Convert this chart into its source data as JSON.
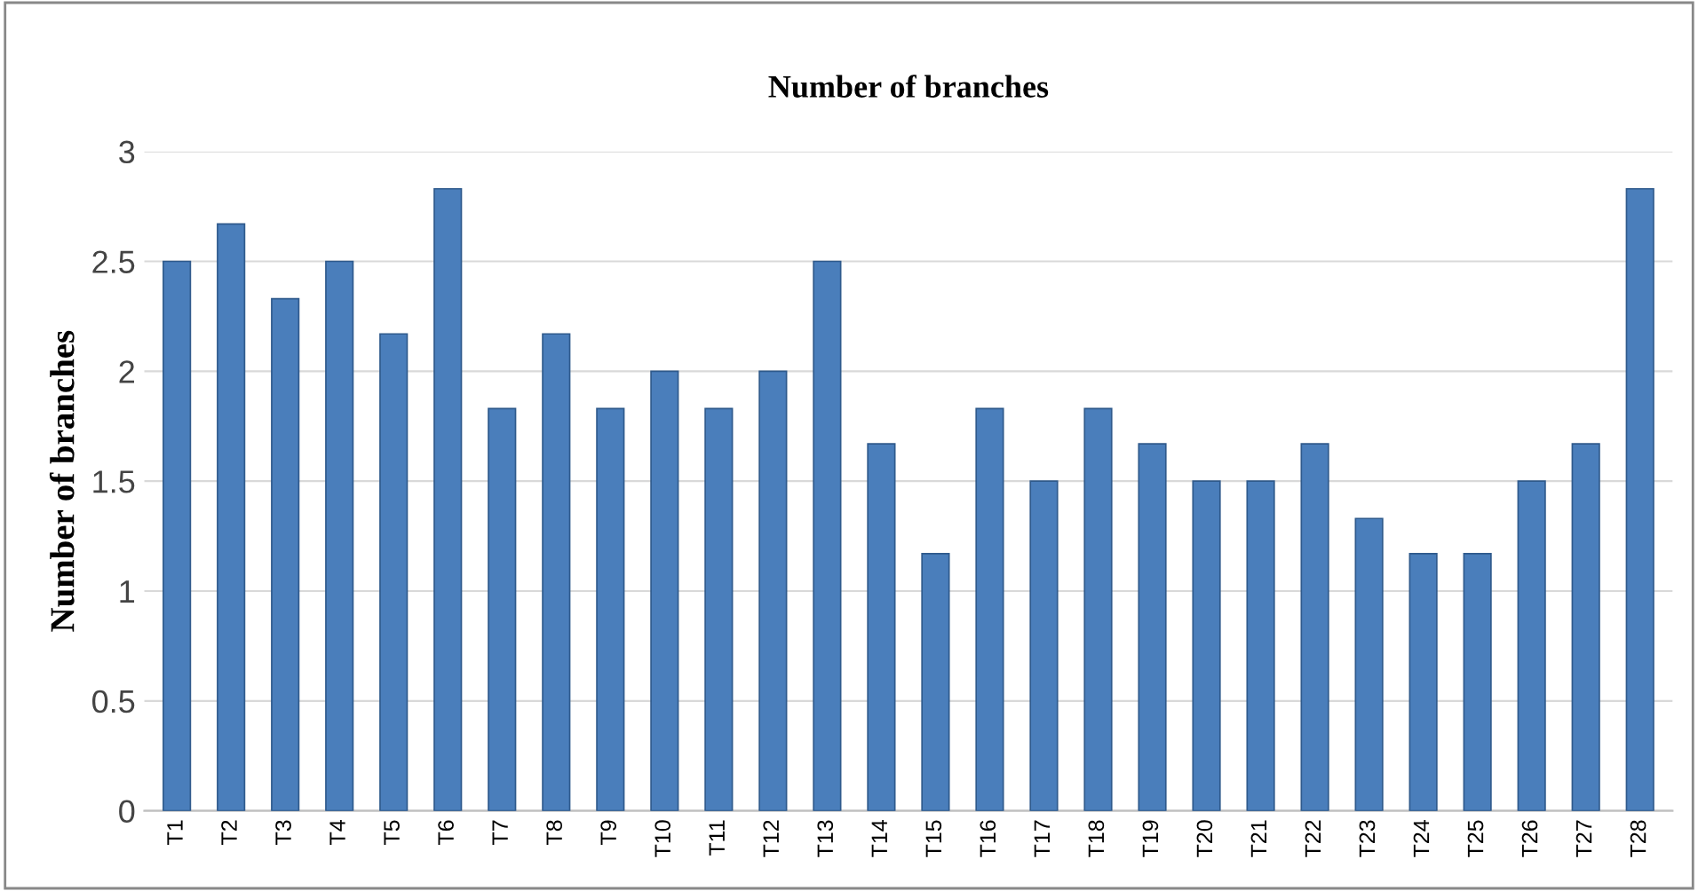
{
  "chart_data": {
    "type": "bar",
    "title": "Number of branches",
    "ylabel": "Number of branches",
    "categories": [
      "T1",
      "T2",
      "T3",
      "T4",
      "T5",
      "T6",
      "T7",
      "T8",
      "T9",
      "T10",
      "T11",
      "T12",
      "T13",
      "T14",
      "T15",
      "T16",
      "T17",
      "T18",
      "T19",
      "T20",
      "T21",
      "T22",
      "T23",
      "T24",
      "T25",
      "T26",
      "T27",
      "T28"
    ],
    "values": [
      2.5,
      2.67,
      2.33,
      2.5,
      2.17,
      2.83,
      1.83,
      2.17,
      1.83,
      2,
      1.83,
      2,
      2.5,
      1.67,
      1.17,
      1.83,
      1.5,
      1.83,
      1.67,
      1.5,
      1.5,
      1.67,
      1.33,
      1.17,
      1.17,
      1.5,
      1.67,
      2.83
    ],
    "color": "#4a7ebb",
    "ylim": [
      0,
      3
    ],
    "yticks": [
      0,
      0.5,
      1,
      1.5,
      2,
      2.5,
      3
    ],
    "grid": "y",
    "legend": false
  }
}
